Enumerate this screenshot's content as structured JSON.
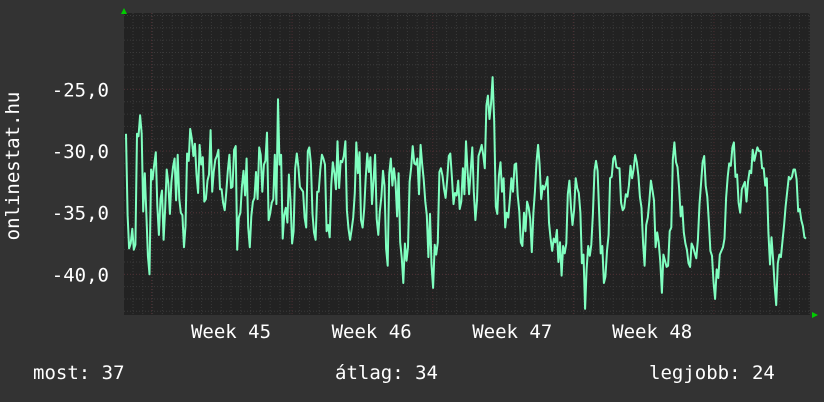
{
  "chart_data": {
    "type": "line",
    "ylabel": "onlinestat.hu",
    "ylim": [
      -43.3,
      -18.8
    ],
    "yticks": [
      "-25,0",
      "-30,0",
      "-35,0",
      "-40,0"
    ],
    "ytick_values": [
      -25,
      -30,
      -35,
      -40
    ],
    "x_labels": [
      "Week 45",
      "Week 46",
      "Week 47",
      "Week 48"
    ],
    "x_label_positions": [
      0.156,
      0.361,
      0.566,
      0.77
    ],
    "series": [
      {
        "color": "#80ffc0",
        "values": [
          -28.6,
          -35.2,
          -37.9,
          -37.5,
          -36.3,
          -38.0,
          -37.6,
          -28.6,
          -28.8,
          -27.1,
          -28.6,
          -34.9,
          -31.8,
          -35.2,
          -38.5,
          -40.0,
          -31.5,
          -32.3,
          -31.1,
          -30.1,
          -34.4,
          -36.8,
          -33.9,
          -33.2,
          -37.2,
          -34.6,
          -31.5,
          -32.6,
          -35.1,
          -32.5,
          -31.3,
          -30.6,
          -34.0,
          -30.3,
          -33.9,
          -35.0,
          -35.2,
          -37.8,
          -36.1,
          -30.2,
          -30.8,
          -28.2,
          -29.0,
          -30.4,
          -29.4,
          -31.9,
          -33.4,
          -29.5,
          -31.1,
          -30.5,
          -34.1,
          -33.9,
          -32.4,
          -31.9,
          -28.3,
          -33.3,
          -31.7,
          -30.7,
          -30.4,
          -29.9,
          -33.1,
          -33.1,
          -34.2,
          -34.8,
          -33.3,
          -31.6,
          -30.3,
          -33.0,
          -32.9,
          -29.9,
          -29.6,
          -38.0,
          -35.4,
          -35.0,
          -32.9,
          -31.6,
          -33.6,
          -30.6,
          -36.2,
          -37.8,
          -35.3,
          -34.1,
          -33.8,
          -31.7,
          -33.9,
          -29.7,
          -30.3,
          -33.3,
          -31.1,
          -30.8,
          -28.5,
          -35.6,
          -35.1,
          -34.2,
          -33.9,
          -30.3,
          -34.3,
          -25.8,
          -31.1,
          -30.3,
          -37.1,
          -35.2,
          -34.6,
          -35.8,
          -31.9,
          -34.0,
          -37.5,
          -36.5,
          -31.4,
          -30.2,
          -31.3,
          -32.9,
          -33.1,
          -33.3,
          -35.4,
          -36.2,
          -30.0,
          -29.7,
          -31.0,
          -35.1,
          -36.6,
          -37.2,
          -33.3,
          -33.3,
          -31.5,
          -30.3,
          -30.6,
          -31.1,
          -36.5,
          -36.0,
          -37.0,
          -32.7,
          -30.9,
          -31.8,
          -33.1,
          -29.2,
          -33.0,
          -30.8,
          -30.9,
          -30.4,
          -29.2,
          -34.8,
          -36.3,
          -37.2,
          -36.4,
          -35.4,
          -33.4,
          -29.3,
          -31.8,
          -30.1,
          -35.6,
          -36.2,
          -34.7,
          -32.2,
          -30.2,
          -31.7,
          -30.5,
          -34.3,
          -32.3,
          -30.3,
          -35.5,
          -36.8,
          -34.9,
          -33.7,
          -31.6,
          -32.8,
          -37.9,
          -39.3,
          -31.9,
          -30.6,
          -32.8,
          -31.4,
          -32.5,
          -35.3,
          -31.8,
          -37.4,
          -38.7,
          -40.7,
          -37.5,
          -38.9,
          -37.8,
          -32.5,
          -31.3,
          -29.6,
          -31.0,
          -31.1,
          -30.6,
          -33.5,
          -29.5,
          -31.0,
          -32.3,
          -34.1,
          -35.2,
          -38.6,
          -35.1,
          -39.2,
          -41.1,
          -37.6,
          -38.4,
          -37.4,
          -31.7,
          -31.4,
          -32.0,
          -33.1,
          -33.8,
          -32.3,
          -30.4,
          -30.2,
          -32.1,
          -34.3,
          -33.4,
          -33.6,
          -32.4,
          -34.7,
          -34.1,
          -31.4,
          -33.5,
          -29.2,
          -31.7,
          -33.5,
          -31.6,
          -29.7,
          -33.3,
          -35.6,
          -34.0,
          -30.4,
          -30.0,
          -29.5,
          -30.3,
          -31.4,
          -26.3,
          -25.5,
          -27.4,
          -26.1,
          -24.0,
          -27.6,
          -34.5,
          -35.1,
          -32.0,
          -30.9,
          -33.3,
          -32.2,
          -36.2,
          -35.0,
          -35.4,
          -33.9,
          -32.2,
          -33.3,
          -31.1,
          -31.0,
          -33.6,
          -34.9,
          -37.4,
          -37.7,
          -35.0,
          -36.5,
          -34.1,
          -34.6,
          -35.5,
          -38.2,
          -35.0,
          -33.3,
          -30.9,
          -29.5,
          -31.1,
          -33.9,
          -32.8,
          -33.1,
          -32.7,
          -32.1,
          -35.8,
          -37.1,
          -38.1,
          -37.1,
          -37.4,
          -36.4,
          -39.0,
          -37.4,
          -40.1,
          -37.7,
          -38.3,
          -37.5,
          -33.5,
          -32.4,
          -34.6,
          -36.0,
          -34.8,
          -32.2,
          -33.0,
          -33.4,
          -35.0,
          -39.1,
          -38.4,
          -42.8,
          -39.6,
          -37.7,
          -38.5,
          -37.6,
          -35.1,
          -31.6,
          -30.8,
          -31.6,
          -35.1,
          -38.3,
          -37.7,
          -40.7,
          -40.2,
          -38.1,
          -36.8,
          -32.2,
          -32.1,
          -30.6,
          -30.4,
          -31.3,
          -31.4,
          -31.4,
          -34.2,
          -34.8,
          -34.6,
          -33.5,
          -33.7,
          -32.8,
          -31.2,
          -32.2,
          -31.5,
          -30.3,
          -30.9,
          -32.0,
          -33.7,
          -34.6,
          -37.5,
          -39.3,
          -36.0,
          -35.4,
          -34.1,
          -32.4,
          -33.2,
          -34.0,
          -37.8,
          -36.6,
          -37.4,
          -39.0,
          -41.5,
          -38.4,
          -38.9,
          -39.4,
          -39.3,
          -36.5,
          -36.2,
          -30.7,
          -29.3,
          -30.9,
          -31.3,
          -33.0,
          -35.3,
          -34.5,
          -36.6,
          -37.5,
          -38.0,
          -39.1,
          -39.4,
          -37.5,
          -37.8,
          -38.3,
          -38.7,
          -37.2,
          -34.3,
          -32.7,
          -30.9,
          -30.4,
          -32.8,
          -33.7,
          -35.8,
          -38.1,
          -38.5,
          -40.7,
          -42.0,
          -39.6,
          -40.3,
          -38.4,
          -38.1,
          -37.8,
          -37.1,
          -33.8,
          -32.1,
          -31.0,
          -31.2,
          -29.7,
          -29.3,
          -32.1,
          -31.9,
          -34.2,
          -35.0,
          -33.1,
          -32.8,
          -32.5,
          -34.1,
          -32.5,
          -31.6,
          -31.8,
          -29.9,
          -30.8,
          -30.2,
          -29.7,
          -30.0,
          -30.0,
          -31.4,
          -31.4,
          -32.8,
          -32.2,
          -36.6,
          -39.2,
          -37.0,
          -38.8,
          -41.0,
          -42.5,
          -39.1,
          -38.4,
          -38.6,
          -37.3,
          -36.0,
          -34.5,
          -33.3,
          -32.1,
          -32.3,
          -32.1,
          -31.5,
          -31.5,
          -32.3,
          -34.9,
          -34.7,
          -35.6,
          -36.1,
          -37.0,
          -37.1
        ]
      }
    ],
    "grid": true
  },
  "footer": {
    "current_label": "most:",
    "current_value": "37",
    "average_label": "átlag:",
    "average_value": "34",
    "best_label": "legjobb:",
    "best_value": "24"
  },
  "colors": {
    "background": "#333333",
    "plot_background": "#222222",
    "grid_major": "#4b2e32",
    "grid_minor": "#3a3a3a",
    "line": "#80ffc0",
    "axis_arrow": "#00cc00"
  }
}
